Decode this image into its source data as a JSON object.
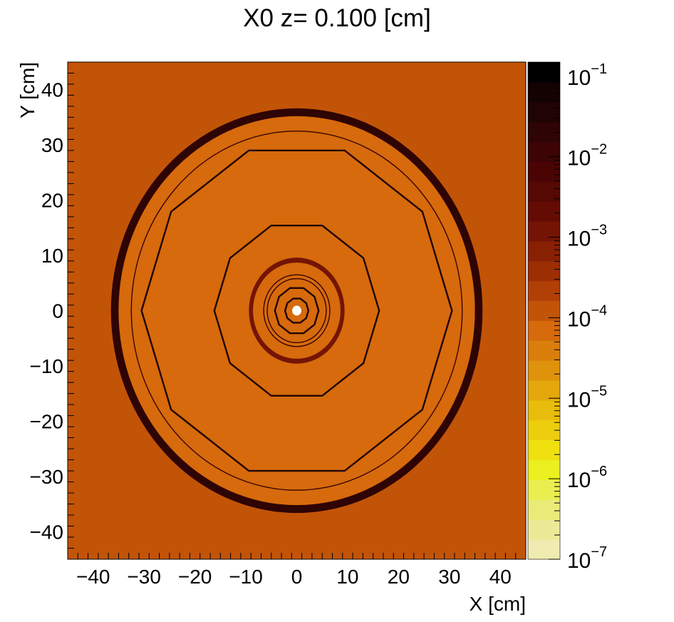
{
  "chart_data": {
    "type": "heatmap",
    "title": "X0 z=  0.100 [cm]",
    "xlabel": "X [cm]",
    "ylabel": "Y [cm]",
    "xlim": [
      -45,
      45
    ],
    "ylim": [
      -45,
      45
    ],
    "x_ticks": [
      -40,
      -30,
      -20,
      -10,
      0,
      10,
      20,
      30,
      40
    ],
    "y_ticks": [
      -40,
      -30,
      -20,
      -10,
      0,
      10,
      20,
      30,
      40
    ],
    "x_tick_labels": [
      "−40",
      "−30",
      "−20",
      "−10",
      "0",
      "10",
      "20",
      "30",
      "40"
    ],
    "y_tick_labels": [
      "−40",
      "−30",
      "−20",
      "−10",
      "0",
      "10",
      "20",
      "30",
      "40"
    ],
    "colorbar": {
      "scale": "log",
      "range": [
        1e-07,
        0.15
      ],
      "tick_values": [
        1e-07,
        1e-06,
        1e-05,
        0.0001,
        0.001,
        0.01,
        0.1
      ],
      "tick_exponents": [
        "−7",
        "−6",
        "−5",
        "−4",
        "−3",
        "−2",
        "−1"
      ],
      "tick_base": "10",
      "colors": [
        "#f0ebb0",
        "#ecea96",
        "#eaea78",
        "#eaee50",
        "#ecf020",
        "#f0e010",
        "#edce0e",
        "#e8bc0c",
        "#e4a80c",
        "#df920c",
        "#da7e0c",
        "#d66a0c",
        "#c25408",
        "#b04006",
        "#9c2e04",
        "#882004",
        "#741404",
        "#640c04",
        "#560804",
        "#4a0404",
        "#3c0404",
        "#2e0404",
        "#200404",
        "#140202",
        "#000000"
      ]
    },
    "background_value": 0.00012,
    "regions": [
      {
        "shape": "ellipse",
        "rx": 36.5,
        "ry": 36.6,
        "value": 0.00012,
        "note": "outer fill"
      },
      {
        "shape": "ring",
        "rx_out": 36.5,
        "ry_out": 36.6,
        "rx_in": 35.0,
        "ry_in": 35.2,
        "value": 0.02
      },
      {
        "shape": "ellipse",
        "rx": 35.0,
        "ry": 35.2,
        "value": 7e-05
      },
      {
        "shape": "ring",
        "rx_out": 9.4,
        "ry_out": 9.6,
        "rx_in": 8.6,
        "ry_in": 8.7,
        "value": 0.0015
      },
      {
        "shape": "ellipse",
        "rx": 0.9,
        "ry": 0.9,
        "value": null,
        "note": "beam pipe hole (white)"
      }
    ],
    "outlines": [
      {
        "shape": "circle",
        "r": 32.5
      },
      {
        "shape": "polygon",
        "sides": 10,
        "r": 30.5,
        "rotation_deg": 0
      },
      {
        "shape": "polygon",
        "sides": 10,
        "r": 16.2,
        "rotation_deg": 0
      },
      {
        "shape": "circle",
        "r": 6.5
      },
      {
        "shape": "circle",
        "r": 5.8
      },
      {
        "shape": "polygon",
        "sides": 10,
        "r": 4.3,
        "rotation_deg": 0
      },
      {
        "shape": "polygon",
        "sides": 10,
        "r": 2.3,
        "rotation_deg": 0
      }
    ]
  }
}
